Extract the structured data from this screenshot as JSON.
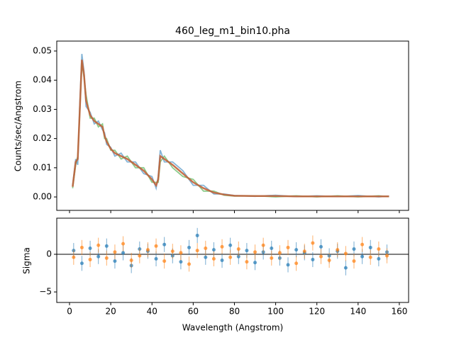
{
  "chart_data": [
    {
      "type": "line",
      "title": "460_leg_m1_bin10.pha",
      "y_label": "Counts/sec/Angstrom",
      "x": [
        1.5,
        3,
        4,
        5,
        6,
        7,
        8,
        10,
        12,
        14,
        16,
        17,
        18,
        20,
        22,
        25,
        28,
        32,
        36,
        40,
        42,
        43,
        44,
        46,
        50,
        55,
        60,
        65,
        70,
        75,
        80,
        90,
        100,
        110,
        120,
        130,
        140,
        150,
        155
      ],
      "series": [
        {
          "color": "#1f77b4",
          "values": [
            0.004,
            0.013,
            0.011,
            0.032,
            0.049,
            0.043,
            0.031,
            0.029,
            0.025,
            0.026,
            0.023,
            0.022,
            0.018,
            0.017,
            0.014,
            0.015,
            0.012,
            0.012,
            0.008,
            0.007,
            0.003,
            0.007,
            0.016,
            0.012,
            0.012,
            0.009,
            0.004,
            0.004,
            0.001,
            0.001,
            0.0005,
            0.0002,
            0.0006,
            0.0001,
            0.0004,
            0.0001,
            0.0005,
            0.0,
            0.0003
          ]
        },
        {
          "color": "#2ca02c",
          "values": [
            0.003,
            0.011,
            0.014,
            0.029,
            0.046,
            0.041,
            0.035,
            0.027,
            0.027,
            0.024,
            0.025,
            0.02,
            0.02,
            0.016,
            0.016,
            0.013,
            0.014,
            0.01,
            0.01,
            0.005,
            0.005,
            0.005,
            0.012,
            0.014,
            0.01,
            0.007,
            0.006,
            0.002,
            0.002,
            0.0006,
            0.0003,
            0.0004,
            0.0,
            0.0004,
            0.0,
            0.0004,
            0.0,
            0.0004,
            0.0001
          ]
        },
        {
          "color": "#c1643c",
          "values": [
            0.0035,
            0.012,
            0.013,
            0.03,
            0.047,
            0.042,
            0.033,
            0.028,
            0.026,
            0.025,
            0.024,
            0.021,
            0.019,
            0.0165,
            0.015,
            0.014,
            0.013,
            0.011,
            0.009,
            0.006,
            0.004,
            0.006,
            0.014,
            0.013,
            0.011,
            0.008,
            0.005,
            0.003,
            0.0015,
            0.0008,
            0.0004,
            0.0003,
            0.0003,
            0.0002,
            0.0002,
            0.0002,
            0.0002,
            0.0002,
            0.0002
          ]
        }
      ],
      "xlim": [
        -6.2,
        164.5
      ],
      "ylim": [
        -0.0046,
        0.0534
      ],
      "yticks": [
        {
          "value": 0,
          "label": "0.00"
        },
        0.01,
        0.02,
        0.03,
        0.04,
        0.05
      ]
    },
    {
      "type": "scatter",
      "x_label": "Wavelength (Angstrom)",
      "y_label": "Sigma",
      "x": [
        2,
        6,
        10,
        14,
        18,
        22,
        26,
        30,
        34,
        38,
        42,
        46,
        50,
        54,
        58,
        62,
        66,
        70,
        74,
        78,
        82,
        86,
        90,
        94,
        98,
        102,
        106,
        110,
        114,
        118,
        122,
        126,
        130,
        134,
        138,
        142,
        146,
        150,
        154
      ],
      "series": [
        {
          "color": "#1f77b4",
          "values": [
            0.5,
            -1.2,
            0.8,
            -0.3,
            1.1,
            -0.9,
            0.2,
            -1.5,
            0.7,
            0.4,
            -0.6,
            1.3,
            -0.2,
            -1.0,
            0.9,
            2.5,
            -0.4,
            0.6,
            -0.8,
            1.2,
            -0.3,
            0.5,
            -1.1,
            0.3,
            0.8,
            -0.5,
            -1.4,
            0.6,
            0.2,
            -0.7,
            1.0,
            -0.2,
            0.4,
            -1.8,
            0.7,
            -0.3,
            0.9,
            -0.6,
            0.3
          ]
        },
        {
          "color": "#ff7f0e",
          "values": [
            -0.4,
            0.9,
            -0.7,
            1.2,
            -0.5,
            0.3,
            1.4,
            -0.8,
            -0.2,
            0.6,
            1.1,
            -0.9,
            0.4,
            0.2,
            -1.3,
            0.5,
            0.8,
            -0.6,
            1.0,
            -0.4,
            0.7,
            -1.0,
            0.3,
            1.2,
            -0.5,
            0.2,
            0.9,
            -1.2,
            0.4,
            1.5,
            -0.3,
            -0.8,
            0.6,
            0.1,
            -0.9,
            1.3,
            -0.4,
            0.7,
            -0.2
          ]
        }
      ],
      "xlim": [
        -6.2,
        164.5
      ],
      "ylim": [
        -6.4,
        4.8
      ],
      "xticks": [
        0,
        20,
        40,
        60,
        80,
        100,
        120,
        140,
        160
      ],
      "yticks": [
        {
          "value": -5,
          "label": "−5"
        },
        0
      ]
    }
  ]
}
